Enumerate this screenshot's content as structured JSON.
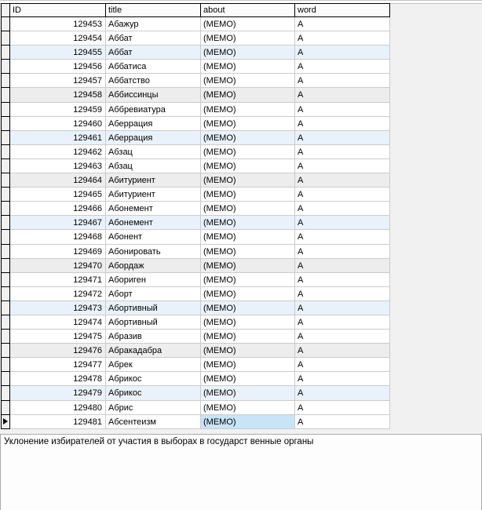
{
  "colors": {
    "form_bg": "#F1F1F1",
    "header_bg": "#FBFBFB",
    "header_border": "#000000",
    "indicator_bg": "#F0F0F0",
    "grid_line": "#CBCBCB",
    "row_blue": "#E9F2FB",
    "row_gray": "#EDEDED",
    "selected_cell": "#C8E4F7"
  },
  "grid": {
    "columns": [
      {
        "key": "id",
        "label": "ID"
      },
      {
        "key": "title",
        "label": "title"
      },
      {
        "key": "about",
        "label": "about"
      },
      {
        "key": "word",
        "label": "word"
      }
    ],
    "current_row_id": "129481",
    "selected_cell": {
      "row_id": "129481",
      "column": "about"
    },
    "rows": [
      {
        "id": "129453",
        "title": "Абажур",
        "about": "(MEMO)",
        "word": "А",
        "highlight": "none"
      },
      {
        "id": "129454",
        "title": "Аббат",
        "about": "(MEMO)",
        "word": "А",
        "highlight": "none"
      },
      {
        "id": "129455",
        "title": "Аббат",
        "about": "(MEMO)",
        "word": "А",
        "highlight": "blue"
      },
      {
        "id": "129456",
        "title": "Аббатиса",
        "about": "(MEMO)",
        "word": "А",
        "highlight": "none"
      },
      {
        "id": "129457",
        "title": "Аббатство",
        "about": "(MEMO)",
        "word": "А",
        "highlight": "none"
      },
      {
        "id": "129458",
        "title": "Аббиссинцы",
        "about": "(MEMO)",
        "word": "А",
        "highlight": "gray"
      },
      {
        "id": "129459",
        "title": "Аббревиатура",
        "about": "(MEMO)",
        "word": "А",
        "highlight": "none"
      },
      {
        "id": "129460",
        "title": "Аберрация",
        "about": "(MEMO)",
        "word": "А",
        "highlight": "none"
      },
      {
        "id": "129461",
        "title": "Аберрация",
        "about": "(MEMO)",
        "word": "А",
        "highlight": "blue"
      },
      {
        "id": "129462",
        "title": "Абзац",
        "about": "(MEMO)",
        "word": "А",
        "highlight": "none"
      },
      {
        "id": "129463",
        "title": "Абзац",
        "about": "(MEMO)",
        "word": "А",
        "highlight": "none"
      },
      {
        "id": "129464",
        "title": "Абитуриент",
        "about": "(MEMO)",
        "word": "А",
        "highlight": "gray"
      },
      {
        "id": "129465",
        "title": "Абитуриент",
        "about": "(MEMO)",
        "word": "А",
        "highlight": "none"
      },
      {
        "id": "129466",
        "title": "Абонемент",
        "about": "(MEMO)",
        "word": "А",
        "highlight": "none"
      },
      {
        "id": "129467",
        "title": "Абонемент",
        "about": "(MEMO)",
        "word": "А",
        "highlight": "blue"
      },
      {
        "id": "129468",
        "title": "Абонент",
        "about": "(MEMO)",
        "word": "А",
        "highlight": "none"
      },
      {
        "id": "129469",
        "title": "Абонировать",
        "about": "(MEMO)",
        "word": "А",
        "highlight": "none"
      },
      {
        "id": "129470",
        "title": "Абордаж",
        "about": "(MEMO)",
        "word": "А",
        "highlight": "gray"
      },
      {
        "id": "129471",
        "title": "Абориген",
        "about": "(MEMO)",
        "word": "А",
        "highlight": "none"
      },
      {
        "id": "129472",
        "title": "Аборт",
        "about": "(MEMO)",
        "word": "А",
        "highlight": "none"
      },
      {
        "id": "129473",
        "title": "Абортивный",
        "about": "(MEMO)",
        "word": "А",
        "highlight": "blue"
      },
      {
        "id": "129474",
        "title": "Абортивный",
        "about": "(MEMO)",
        "word": "А",
        "highlight": "none"
      },
      {
        "id": "129475",
        "title": "Абразив",
        "about": "(MEMO)",
        "word": "А",
        "highlight": "none"
      },
      {
        "id": "129476",
        "title": "Абракадабра",
        "about": "(MEMO)",
        "word": "А",
        "highlight": "gray"
      },
      {
        "id": "129477",
        "title": "Абрек",
        "about": "(MEMO)",
        "word": "А",
        "highlight": "none"
      },
      {
        "id": "129478",
        "title": "Абрикос",
        "about": "(MEMO)",
        "word": "А",
        "highlight": "none"
      },
      {
        "id": "129479",
        "title": "Абрикос",
        "about": "(MEMO)",
        "word": "А",
        "highlight": "blue"
      },
      {
        "id": "129480",
        "title": "Абрис",
        "about": "(MEMO)",
        "word": "А",
        "highlight": "none"
      },
      {
        "id": "129481",
        "title": "Абсентеизм",
        "about": "(MEMO)",
        "word": "А",
        "highlight": "none"
      }
    ]
  },
  "memo": {
    "text": "Уклонение избирателей от участия в выборах в государст венные органы"
  }
}
